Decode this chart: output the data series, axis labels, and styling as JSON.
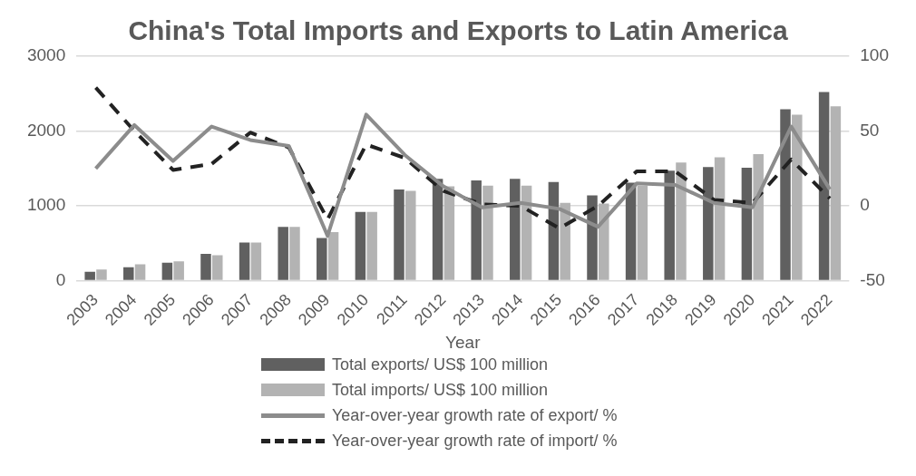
{
  "chart_data": {
    "type": "bar",
    "title": "China's Total Imports and Exports to Latin America",
    "xlabel": "Year",
    "categories": [
      "2003",
      "2004",
      "2005",
      "2006",
      "2007",
      "2008",
      "2009",
      "2010",
      "2011",
      "2012",
      "2013",
      "2014",
      "2015",
      "2016",
      "2017",
      "2018",
      "2019",
      "2020",
      "2021",
      "2022"
    ],
    "series": [
      {
        "name": "Total exports/ US$ 100 million",
        "color": "#606060",
        "values": [
          120,
          180,
          240,
          360,
          510,
          720,
          570,
          920,
          1220,
          1360,
          1340,
          1360,
          1320,
          1140,
          1310,
          1470,
          1520,
          1510,
          2290,
          2520
        ]
      },
      {
        "name": "Total imports/ US$ 100 million",
        "color": "#b3b3b3",
        "values": [
          150,
          220,
          260,
          340,
          510,
          720,
          650,
          920,
          1200,
          1260,
          1270,
          1270,
          1040,
          1030,
          1270,
          1580,
          1650,
          1690,
          2220,
          2330
        ]
      },
      {
        "name": "Year-over-year growth rate of export/ %",
        "type": "line",
        "axis": "y2",
        "color": "#8c8c8c",
        "line_style": "solid",
        "values": [
          25,
          54,
          30,
          53,
          44,
          40,
          -20,
          61,
          34,
          13,
          -1,
          2,
          -2,
          -14,
          15,
          14,
          2,
          -1,
          53,
          11
        ]
      },
      {
        "name": "Year-over-year growth rate of import/ %",
        "type": "line",
        "axis": "y2",
        "color": "#222222",
        "line_style": "dashed",
        "values": [
          79,
          50,
          24,
          28,
          49,
          39,
          -9,
          41,
          32,
          10,
          1,
          0,
          -15,
          0,
          23,
          23,
          4,
          2,
          31,
          5
        ]
      }
    ],
    "ylim": [
      0,
      3000
    ],
    "yticks": [
      0,
      1000,
      2000,
      3000
    ],
    "y2lim": [
      -50,
      100
    ],
    "y2ticks": [
      -50,
      0,
      50,
      100
    ],
    "grid": "y",
    "legend": "bottom",
    "marker": "none"
  }
}
